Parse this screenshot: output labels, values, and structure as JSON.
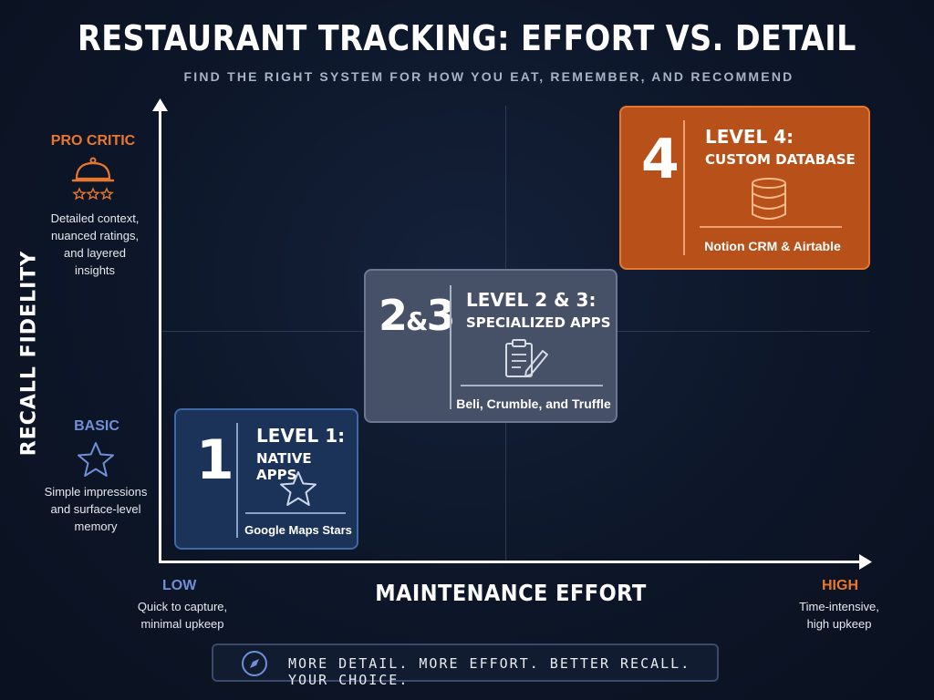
{
  "title": "RESTAURANT TRACKING: EFFORT VS. DETAIL",
  "subtitle": "FIND THE RIGHT SYSTEM FOR HOW YOU EAT, REMEMBER, AND RECOMMEND",
  "y_axis": {
    "title": "RECALL FIDELITY",
    "high_label": "PRO CRITIC",
    "high_desc": [
      "Detailed context,",
      "nuanced ratings,",
      "and layered",
      "insights"
    ],
    "low_label": "BASIC",
    "low_desc": [
      "Simple impressions",
      "and surface-level",
      "memory"
    ],
    "high_icon": "cloche-with-stars-icon",
    "low_icon": "star-outline-icon"
  },
  "x_axis": {
    "title": "MAINTENANCE EFFORT",
    "low_label": "LOW",
    "low_desc": [
      "Quick to capture,",
      "minimal upkeep"
    ],
    "high_label": "HIGH",
    "high_desc": [
      "Time-intensive,",
      "high upkeep"
    ]
  },
  "cards": [
    {
      "num": "1",
      "level": "LEVEL 1:",
      "name": "NATIVE APPS",
      "icon": "star-outline-icon",
      "tools": "Google Maps Stars"
    },
    {
      "num_main": "2",
      "num_amp": "&",
      "num_end": "3",
      "level": "LEVEL 2 & 3:",
      "name": "SPECIALIZED APPS",
      "icon": "clipboard-pencil-icon",
      "tools": "Beli, Crumble, and Truffle"
    },
    {
      "num": "4",
      "level": "LEVEL 4:",
      "name": "CUSTOM DATABASE",
      "icon": "database-icon",
      "tools": "Notion CRM & Airtable"
    }
  ],
  "footer": {
    "icon": "compass-icon",
    "text": "MORE DETAIL. MORE EFFORT. BETTER RECALL. YOUR CHOICE."
  },
  "colors": {
    "orange": "#e8772e",
    "blue": "#6f8fd6",
    "card1_bg": "#1b3358",
    "card2_bg": "#465066",
    "card4_bg": "#b8501a"
  }
}
